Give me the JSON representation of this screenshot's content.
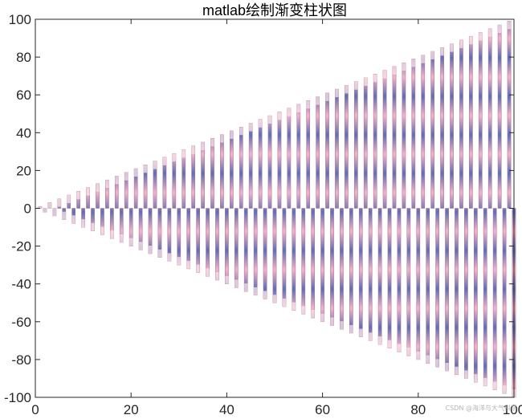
{
  "chart_data": {
    "type": "bar",
    "title": "matlab绘制渐变柱状图",
    "xlabel": "",
    "ylabel": "",
    "xlim": [
      0,
      100
    ],
    "ylim": [
      -100,
      100
    ],
    "x_ticks": [
      0,
      20,
      40,
      60,
      80,
      100
    ],
    "y_ticks": [
      100,
      80,
      60,
      40,
      20,
      0,
      -20,
      -40,
      -60,
      -80,
      -100
    ],
    "grid": false,
    "legend": "none",
    "bar_fill": "vertical gradient pink-blue stripes",
    "colors": {
      "pink": "#f2a6c4",
      "blue": "#5d6fb8",
      "light_pink": "#fbe3ea",
      "edge": "#b07080",
      "axis": "#262626"
    },
    "series": [
      {
        "x": [
          1,
          3,
          5,
          7,
          9,
          11,
          13,
          15,
          17,
          19,
          21,
          23,
          25,
          27,
          29,
          31,
          33,
          35,
          37,
          39,
          41,
          43,
          45,
          47,
          49,
          51,
          53,
          55,
          57,
          59,
          61,
          63,
          65,
          67,
          69,
          71,
          73,
          75,
          77,
          79,
          81,
          83,
          85,
          87,
          89,
          91,
          93,
          95,
          97,
          99
        ],
        "values": [
          1,
          3,
          5,
          7,
          9,
          11,
          13,
          15,
          17,
          19,
          21,
          23,
          25,
          27,
          29,
          31,
          33,
          35,
          37,
          39,
          41,
          43,
          45,
          47,
          49,
          51,
          53,
          55,
          57,
          59,
          61,
          63,
          65,
          67,
          69,
          71,
          73,
          75,
          77,
          79,
          81,
          83,
          85,
          87,
          89,
          91,
          93,
          95,
          97,
          99
        ]
      },
      {
        "x": [
          2,
          4,
          6,
          8,
          10,
          12,
          14,
          16,
          18,
          20,
          22,
          24,
          26,
          28,
          30,
          32,
          34,
          36,
          38,
          40,
          42,
          44,
          46,
          48,
          50,
          52,
          54,
          56,
          58,
          60,
          62,
          64,
          66,
          68,
          70,
          72,
          74,
          76,
          78,
          80,
          82,
          84,
          86,
          88,
          90,
          92,
          94,
          96,
          98,
          100
        ],
        "values": [
          -2,
          -4,
          -6,
          -8,
          -10,
          -12,
          -14,
          -16,
          -18,
          -20,
          -22,
          -24,
          -26,
          -28,
          -30,
          -32,
          -34,
          -36,
          -38,
          -40,
          -42,
          -44,
          -46,
          -48,
          -50,
          -52,
          -54,
          -56,
          -58,
          -60,
          -62,
          -64,
          -66,
          -68,
          -70,
          -72,
          -74,
          -76,
          -78,
          -80,
          -82,
          -84,
          -86,
          -88,
          -90,
          -92,
          -94,
          -96,
          -98,
          -100
        ]
      }
    ]
  },
  "watermark": "CSDN @海洋与大气科学"
}
